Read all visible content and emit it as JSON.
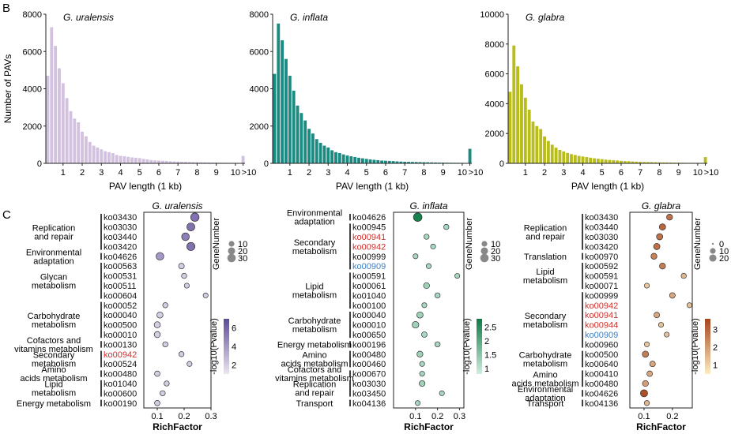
{
  "figure": {
    "panel_b": "B",
    "panel_c": "C"
  },
  "colors": {
    "uralensis_bar": "#d2c2e0",
    "inflata_bar": "#1b8a80",
    "glabra_bar": "#b8bd1c",
    "highlight_red": "#d0302c",
    "highlight_blue": "#3f7fbf"
  },
  "chart_data": [
    {
      "id": "hist-uralensis",
      "type": "bar",
      "title": "G. uralensis",
      "xlabel": "PAV length (1 kb)",
      "ylabel": "Number of PAVs",
      "ylim": [
        0,
        8000
      ],
      "yticks": [
        0,
        2000,
        4000,
        6000,
        8000
      ],
      "xticks": [
        "1",
        "2",
        "3",
        "4",
        "5",
        "6",
        "7",
        "8",
        "9",
        "10",
        ">10"
      ],
      "values": [
        4700,
        7300,
        6300,
        5100,
        4300,
        3500,
        2800,
        2400,
        2200,
        1700,
        1450,
        1150,
        950,
        850,
        750,
        650,
        600,
        550,
        450,
        400,
        380,
        350,
        320,
        300,
        280,
        240,
        210,
        180,
        160,
        150,
        140,
        130,
        110,
        100,
        90,
        85,
        80,
        70,
        65,
        60,
        55,
        50,
        45,
        40,
        40,
        35,
        30,
        28,
        25,
        22,
        20,
        400
      ]
    },
    {
      "id": "hist-inflata",
      "type": "bar",
      "title": "G. inflata",
      "xlabel": "PAV length (1 kb)",
      "ylabel": "",
      "ylim": [
        0,
        8000
      ],
      "yticks": [
        0,
        2000,
        4000,
        6000,
        8000
      ],
      "xticks": [
        "1",
        "2",
        "3",
        "4",
        "5",
        "6",
        "7",
        "8",
        "9",
        "10",
        ">10"
      ],
      "values": [
        4800,
        7500,
        6600,
        5600,
        4700,
        3900,
        3100,
        2700,
        2300,
        1850,
        1600,
        1300,
        1100,
        950,
        850,
        700,
        600,
        550,
        480,
        420,
        380,
        340,
        300,
        270,
        240,
        210,
        190,
        170,
        150,
        140,
        130,
        120,
        105,
        95,
        85,
        80,
        75,
        70,
        65,
        60,
        55,
        50,
        45,
        40,
        38,
        35,
        32,
        30,
        28,
        25,
        22,
        780
      ]
    },
    {
      "id": "hist-glabra",
      "type": "bar",
      "title": "G. glabra",
      "xlabel": "PAV length (1 kb)",
      "ylabel": "",
      "ylim": [
        0,
        10000
      ],
      "yticks": [
        0,
        2000,
        4000,
        6000,
        8000,
        10000
      ],
      "xticks": [
        "1",
        "2",
        "3",
        "4",
        "5",
        "6",
        "7",
        "8",
        "9",
        "10",
        ">10"
      ],
      "values": [
        4800,
        7900,
        6500,
        5300,
        4400,
        3600,
        2800,
        2500,
        2300,
        1800,
        1500,
        1250,
        1050,
        900,
        800,
        700,
        620,
        560,
        500,
        460,
        420,
        380,
        340,
        310,
        280,
        250,
        230,
        210,
        190,
        170,
        150,
        140,
        125,
        110,
        100,
        90,
        85,
        80,
        70,
        65,
        60,
        55,
        50,
        45,
        42,
        38,
        35,
        32,
        30,
        28,
        25,
        420
      ]
    },
    {
      "id": "dot-uralensis",
      "type": "scatter",
      "title": "G. uralensis",
      "xlabel": "RichFactor",
      "xlim": [
        0.05,
        0.3
      ],
      "xticks": [
        0.1,
        0.2,
        0.3
      ],
      "size_legend_title": "GeneNumber",
      "size_legend": [
        10,
        20,
        30
      ],
      "color_legend_title": "-log10(Pvalue)",
      "color_ticks": [
        2,
        4,
        6
      ],
      "color_range": [
        1,
        7
      ],
      "color_low": "#ece6f2",
      "color_high": "#5e4a9a",
      "rows": [
        {
          "label": "ko03430",
          "x": 0.24,
          "genes": 30,
          "p": 5.5
        },
        {
          "label": "ko03030",
          "x": 0.225,
          "genes": 26,
          "p": 5.5
        },
        {
          "label": "ko03440",
          "x": 0.205,
          "genes": 24,
          "p": 5.0
        },
        {
          "label": "ko03420",
          "x": 0.225,
          "genes": 28,
          "p": 5.5
        },
        {
          "label": "ko04626",
          "x": 0.11,
          "genes": 24,
          "p": 4.0
        },
        {
          "label": "ko00563",
          "x": 0.19,
          "genes": 10,
          "p": 2.0
        },
        {
          "label": "ko00531",
          "x": 0.2,
          "genes": 8,
          "p": 2.0
        },
        {
          "label": "ko00511",
          "x": 0.21,
          "genes": 7,
          "p": 2.0
        },
        {
          "label": "ko00604",
          "x": 0.28,
          "genes": 7,
          "p": 2.0
        },
        {
          "label": "ko00052",
          "x": 0.13,
          "genes": 8,
          "p": 2.0
        },
        {
          "label": "ko00040",
          "x": 0.11,
          "genes": 13,
          "p": 2.0
        },
        {
          "label": "ko00500",
          "x": 0.1,
          "genes": 13,
          "p": 2.0
        },
        {
          "label": "ko00010",
          "x": 0.1,
          "genes": 13,
          "p": 2.0
        },
        {
          "label": "ko00130",
          "x": 0.13,
          "genes": 8,
          "p": 2.0
        },
        {
          "label": "ko00942",
          "x": 0.19,
          "genes": 8,
          "p": 2.0,
          "highlight": "red"
        },
        {
          "label": "ko00524",
          "x": 0.22,
          "genes": 7,
          "p": 2.0
        },
        {
          "label": "ko00480",
          "x": 0.1,
          "genes": 9,
          "p": 2.0
        },
        {
          "label": "ko01040",
          "x": 0.135,
          "genes": 8,
          "p": 2.0
        },
        {
          "label": "ko00600",
          "x": 0.12,
          "genes": 8,
          "p": 2.0
        },
        {
          "label": "ko00190",
          "x": 0.1,
          "genes": 9,
          "p": 2.0
        }
      ],
      "groups": [
        {
          "label": "Replication and repair",
          "start": 0,
          "end": 3
        },
        {
          "label": "Environmental adaptation",
          "start": 4,
          "end": 4
        },
        {
          "label": "Glycan metabolism",
          "start": 5,
          "end": 8
        },
        {
          "label": "Carbohydrate metabolism",
          "start": 9,
          "end": 12
        },
        {
          "label": "Cofactors and vitamins metabolism",
          "start": 13,
          "end": 13
        },
        {
          "label": "Secondary metabolism",
          "start": 14,
          "end": 15
        },
        {
          "label": "Amino acids metabolism",
          "start": 16,
          "end": 16
        },
        {
          "label": "Lipid metabolism",
          "start": 17,
          "end": 18
        },
        {
          "label": "Energy metabolism",
          "start": 19,
          "end": 19
        }
      ]
    },
    {
      "id": "dot-inflata",
      "type": "scatter",
      "title": "G. inflata",
      "xlabel": "RichFactor",
      "xlim": [
        0.0,
        0.32
      ],
      "xticks": [
        0.1,
        0.2,
        0.3
      ],
      "size_legend_title": "GeneNumber",
      "size_legend": [
        10,
        20,
        30
      ],
      "color_legend_title": "-log10(Pvalue)",
      "color_ticks": [
        1,
        1.5,
        2,
        2.5
      ],
      "color_range": [
        0.8,
        2.8
      ],
      "color_low": "#cfeee0",
      "color_high": "#0e7a45",
      "rows": [
        {
          "label": "ko04626",
          "x": 0.11,
          "genes": 32,
          "p": 2.7
        },
        {
          "label": "ko00945",
          "x": 0.24,
          "genes": 8,
          "p": 1.2
        },
        {
          "label": "ko00941",
          "x": 0.15,
          "genes": 8,
          "p": 1.2,
          "highlight": "red"
        },
        {
          "label": "ko00942",
          "x": 0.18,
          "genes": 7,
          "p": 1.2,
          "highlight": "red"
        },
        {
          "label": "ko00999",
          "x": 0.1,
          "genes": 7,
          "p": 1.2
        },
        {
          "label": "ko00909",
          "x": 0.16,
          "genes": 7,
          "p": 1.2,
          "highlight": "blue"
        },
        {
          "label": "ko00591",
          "x": 0.29,
          "genes": 7,
          "p": 1.2
        },
        {
          "label": "ko00061",
          "x": 0.15,
          "genes": 12,
          "p": 1.3
        },
        {
          "label": "ko01040",
          "x": 0.2,
          "genes": 8,
          "p": 1.2
        },
        {
          "label": "ko00100",
          "x": 0.14,
          "genes": 7,
          "p": 1.2
        },
        {
          "label": "ko00040",
          "x": 0.12,
          "genes": 14,
          "p": 1.3
        },
        {
          "label": "ko00010",
          "x": 0.1,
          "genes": 16,
          "p": 1.3
        },
        {
          "label": "ko00650",
          "x": 0.14,
          "genes": 10,
          "p": 1.2
        },
        {
          "label": "ko00196",
          "x": 0.2,
          "genes": 8,
          "p": 1.2
        },
        {
          "label": "ko00480",
          "x": 0.12,
          "genes": 12,
          "p": 1.3
        },
        {
          "label": "ko00460",
          "x": 0.13,
          "genes": 7,
          "p": 1.2
        },
        {
          "label": "ko00670",
          "x": 0.13,
          "genes": 7,
          "p": 1.2
        },
        {
          "label": "ko03030",
          "x": 0.13,
          "genes": 11,
          "p": 1.3
        },
        {
          "label": "ko03450",
          "x": 0.22,
          "genes": 7,
          "p": 1.2
        },
        {
          "label": "ko04136",
          "x": 0.11,
          "genes": 7,
          "p": 1.2
        }
      ],
      "groups": [
        {
          "label": "Environmental adaptation",
          "start": 0,
          "end": 0
        },
        {
          "label": "Secondary metabolism",
          "start": 1,
          "end": 5
        },
        {
          "label": "Lipid metabolism",
          "start": 6,
          "end": 9
        },
        {
          "label": "Carbohydrate metabolism",
          "start": 10,
          "end": 12
        },
        {
          "label": "Energy metabolism",
          "start": 13,
          "end": 13
        },
        {
          "label": "Amino acids metabolism",
          "start": 14,
          "end": 15
        },
        {
          "label": "Cofactors and vitamins metabolism",
          "start": 16,
          "end": 16
        },
        {
          "label": "Replication and repair",
          "start": 17,
          "end": 18
        },
        {
          "label": "Transport",
          "start": 19,
          "end": 19
        }
      ]
    },
    {
      "id": "dot-glabra",
      "type": "scatter",
      "title": "G. glabra",
      "xlabel": "RichFactor",
      "xlim": [
        0.05,
        0.27
      ],
      "xticks": [
        0.1,
        0.2
      ],
      "size_legend_title": "GeneNumber",
      "size_legend": [
        0,
        10,
        20
      ],
      "color_legend_title": "-log10(Pvalue)",
      "color_ticks": [
        1,
        2,
        3
      ],
      "color_range": [
        0.5,
        3.6
      ],
      "color_low": "#fbeec6",
      "color_high": "#a8451c",
      "rows": [
        {
          "label": "ko03430",
          "x": 0.19,
          "genes": 12,
          "p": 2.8
        },
        {
          "label": "ko03440",
          "x": 0.165,
          "genes": 14,
          "p": 3.0
        },
        {
          "label": "ko03030",
          "x": 0.155,
          "genes": 14,
          "p": 2.8
        },
        {
          "label": "ko03420",
          "x": 0.145,
          "genes": 14,
          "p": 2.8
        },
        {
          "label": "ko00970",
          "x": 0.135,
          "genes": 12,
          "p": 2.5
        },
        {
          "label": "ko00592",
          "x": 0.165,
          "genes": 12,
          "p": 2.6
        },
        {
          "label": "ko00591",
          "x": 0.24,
          "genes": 8,
          "p": 1.5
        },
        {
          "label": "ko00071",
          "x": 0.11,
          "genes": 7,
          "p": 1.2
        },
        {
          "label": "ko00999",
          "x": 0.2,
          "genes": 10,
          "p": 1.8
        },
        {
          "label": "ko00942",
          "x": 0.26,
          "genes": 7,
          "p": 1.3,
          "highlight": "red"
        },
        {
          "label": "ko00941",
          "x": 0.145,
          "genes": 10,
          "p": 1.8,
          "highlight": "red"
        },
        {
          "label": "ko00944",
          "x": 0.16,
          "genes": 7,
          "p": 1.3,
          "highlight": "red"
        },
        {
          "label": "ko00909",
          "x": 0.18,
          "genes": 7,
          "p": 1.3,
          "highlight": "blue"
        },
        {
          "label": "ko00960",
          "x": 0.11,
          "genes": 7,
          "p": 1.2
        },
        {
          "label": "ko00500",
          "x": 0.105,
          "genes": 14,
          "p": 2.6
        },
        {
          "label": "ko00640",
          "x": 0.13,
          "genes": 10,
          "p": 1.8
        },
        {
          "label": "ko00410",
          "x": 0.12,
          "genes": 10,
          "p": 1.8
        },
        {
          "label": "ko00480",
          "x": 0.105,
          "genes": 12,
          "p": 2.0
        },
        {
          "label": "ko04626",
          "x": 0.1,
          "genes": 20,
          "p": 3.4
        },
        {
          "label": "ko04136",
          "x": 0.11,
          "genes": 8,
          "p": 1.5
        }
      ],
      "groups": [
        {
          "label": "Replication and repair",
          "start": 0,
          "end": 3
        },
        {
          "label": "Translation",
          "start": 4,
          "end": 4
        },
        {
          "label": "Lipid metabolism",
          "start": 5,
          "end": 7
        },
        {
          "label": "Secondary metabolism",
          "start": 8,
          "end": 13
        },
        {
          "label": "Carbohydrate metabolism",
          "start": 14,
          "end": 15
        },
        {
          "label": "Amino acids metabolism",
          "start": 16,
          "end": 17
        },
        {
          "label": "Environmental adaptation",
          "start": 18,
          "end": 18
        },
        {
          "label": "Transport",
          "start": 19,
          "end": 19
        }
      ]
    }
  ]
}
